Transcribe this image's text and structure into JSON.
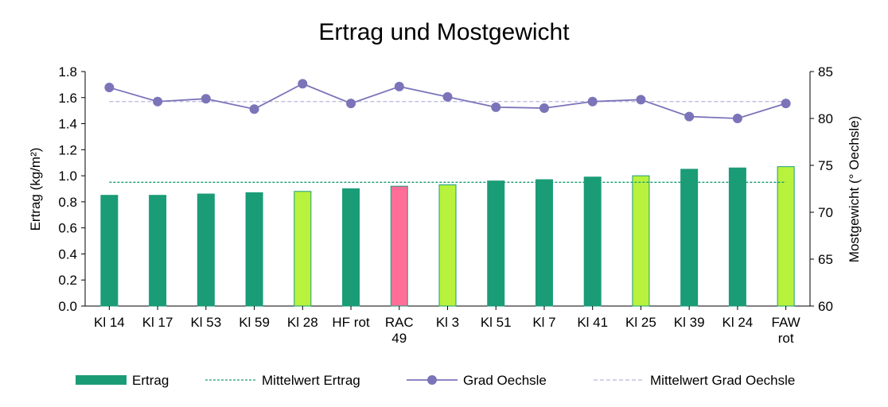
{
  "chart_data": {
    "type": "bar",
    "title": "Ertrag und Mostgewicht",
    "categories": [
      [
        "Kl 14"
      ],
      [
        "Kl 17"
      ],
      [
        "Kl 53"
      ],
      [
        "Kl 59"
      ],
      [
        "Kl 28"
      ],
      [
        "HF rot"
      ],
      [
        "RAC",
        "49"
      ],
      [
        "Kl 3"
      ],
      [
        "Kl 51"
      ],
      [
        "Kl 7"
      ],
      [
        "Kl 41"
      ],
      [
        "Kl 25"
      ],
      [
        "Kl 39"
      ],
      [
        "Kl 24"
      ],
      [
        "FAW",
        "rot"
      ]
    ],
    "ylabel_left": "Ertrag (kg/m²)",
    "ylabel_right": "Mostgewicht (° Oechsle)",
    "ylim_left": [
      0,
      1.8
    ],
    "ylim_right": [
      60,
      85
    ],
    "yticks_left": [
      "0.0",
      "0.2",
      "0.4",
      "0.6",
      "0.8",
      "1.0",
      "1.2",
      "1.4",
      "1.6",
      "1.8"
    ],
    "yticks_right": [
      "60",
      "65",
      "70",
      "75",
      "80",
      "85"
    ],
    "series": [
      {
        "name": "Ertrag",
        "type": "bar",
        "axis": "left",
        "values": [
          0.85,
          0.85,
          0.86,
          0.87,
          0.88,
          0.9,
          0.92,
          0.93,
          0.96,
          0.97,
          0.99,
          1.0,
          1.05,
          1.06,
          1.07
        ],
        "colors": [
          "#1a9c77",
          "#1a9c77",
          "#1a9c77",
          "#1a9c77",
          "#b9f23d",
          "#1a9c77",
          "#ff6e97",
          "#b9f23d",
          "#1a9c77",
          "#1a9c77",
          "#1a9c77",
          "#b9f23d",
          "#1a9c77",
          "#1a9c77",
          "#b9f23d"
        ]
      },
      {
        "name": "Mittelwert Ertrag",
        "type": "hline",
        "axis": "left",
        "value": 0.95,
        "color": "#1a9c77"
      },
      {
        "name": "Grad Oechsle",
        "type": "line",
        "axis": "right",
        "values": [
          83.3,
          81.8,
          82.1,
          81.0,
          83.7,
          81.6,
          83.4,
          82.3,
          81.2,
          81.1,
          81.8,
          82.0,
          80.2,
          80.0,
          81.6
        ],
        "color": "#7b74b9"
      },
      {
        "name": "Mittelwert Grad Oechsle",
        "type": "hline",
        "axis": "right",
        "value": 81.8,
        "color": "#b9b5dc"
      }
    ],
    "legend": {
      "position": "bottom",
      "items": [
        "Ertrag",
        "Mittelwert Ertrag",
        "Grad Oechsle",
        "Mittelwert Grad Oechsle"
      ]
    },
    "colors": {
      "bar_default": "#1a9c77",
      "bar_outline": "#1a9c77",
      "line": "#7b74b9",
      "mean_yield": "#1a9c77",
      "mean_oechsle": "#b9b5dc"
    }
  }
}
